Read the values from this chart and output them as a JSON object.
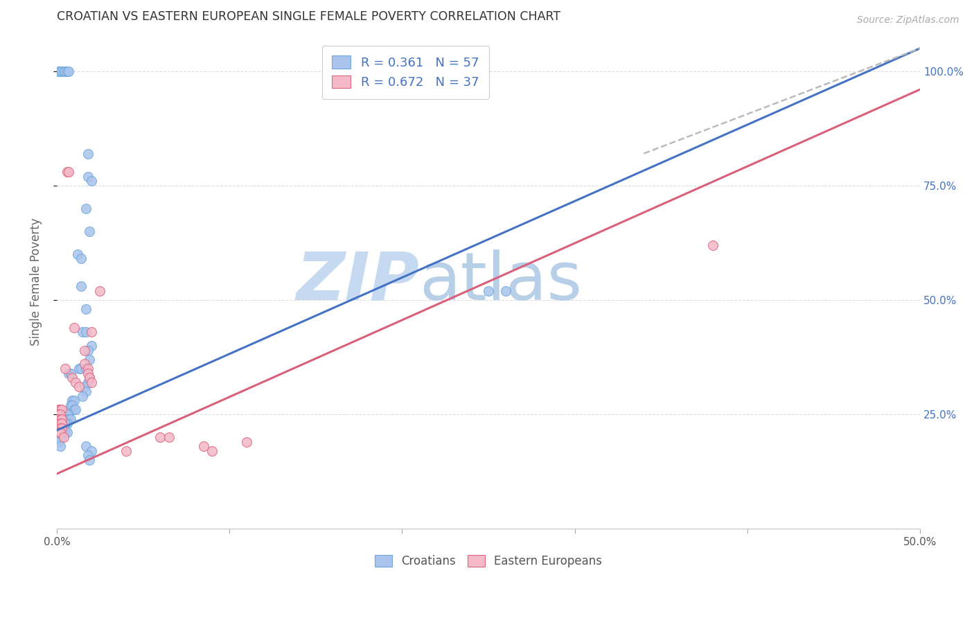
{
  "title": "CROATIAN VS EASTERN EUROPEAN SINGLE FEMALE POVERTY CORRELATION CHART",
  "source": "Source: ZipAtlas.com",
  "ylabel": "Single Female Poverty",
  "right_yticks": [
    "100.0%",
    "75.0%",
    "50.0%",
    "25.0%"
  ],
  "right_ytick_vals": [
    1.0,
    0.75,
    0.5,
    0.25
  ],
  "xlim": [
    0.0,
    0.5
  ],
  "ylim": [
    0.0,
    1.08
  ],
  "croatian_color": "#aac4ed",
  "croatian_edge": "#6fa8dc",
  "eastern_color": "#f4b8c8",
  "eastern_edge": "#d9697e",
  "legend_R_croatian": "R = 0.361",
  "legend_N_croatian": "N = 57",
  "legend_R_eastern": "R = 0.672",
  "legend_N_eastern": "N = 37",
  "croatian_scatter": [
    [
      0.001,
      1.0
    ],
    [
      0.002,
      1.0
    ],
    [
      0.003,
      1.0
    ],
    [
      0.004,
      1.0
    ],
    [
      0.005,
      1.0
    ],
    [
      0.006,
      1.0
    ],
    [
      0.007,
      1.0
    ],
    [
      0.018,
      0.82
    ],
    [
      0.018,
      0.77
    ],
    [
      0.02,
      0.76
    ],
    [
      0.017,
      0.7
    ],
    [
      0.019,
      0.65
    ],
    [
      0.012,
      0.6
    ],
    [
      0.014,
      0.59
    ],
    [
      0.014,
      0.53
    ],
    [
      0.017,
      0.48
    ],
    [
      0.015,
      0.43
    ],
    [
      0.017,
      0.43
    ],
    [
      0.02,
      0.4
    ],
    [
      0.018,
      0.39
    ],
    [
      0.019,
      0.37
    ],
    [
      0.013,
      0.35
    ],
    [
      0.014,
      0.35
    ],
    [
      0.017,
      0.35
    ],
    [
      0.007,
      0.34
    ],
    [
      0.008,
      0.34
    ],
    [
      0.019,
      0.33
    ],
    [
      0.018,
      0.32
    ],
    [
      0.016,
      0.31
    ],
    [
      0.017,
      0.3
    ],
    [
      0.015,
      0.29
    ],
    [
      0.009,
      0.28
    ],
    [
      0.01,
      0.28
    ],
    [
      0.008,
      0.27
    ],
    [
      0.009,
      0.27
    ],
    [
      0.01,
      0.26
    ],
    [
      0.011,
      0.26
    ],
    [
      0.007,
      0.25
    ],
    [
      0.006,
      0.25
    ],
    [
      0.005,
      0.24
    ],
    [
      0.007,
      0.24
    ],
    [
      0.008,
      0.24
    ],
    [
      0.006,
      0.23
    ],
    [
      0.004,
      0.23
    ],
    [
      0.005,
      0.23
    ],
    [
      0.003,
      0.22
    ],
    [
      0.004,
      0.22
    ],
    [
      0.005,
      0.21
    ],
    [
      0.006,
      0.21
    ],
    [
      0.003,
      0.2
    ],
    [
      0.002,
      0.2
    ],
    [
      0.001,
      0.19
    ],
    [
      0.002,
      0.18
    ],
    [
      0.017,
      0.18
    ],
    [
      0.02,
      0.17
    ],
    [
      0.018,
      0.16
    ],
    [
      0.019,
      0.15
    ],
    [
      0.25,
      0.52
    ],
    [
      0.26,
      0.52
    ]
  ],
  "eastern_scatter": [
    [
      0.001,
      0.26
    ],
    [
      0.002,
      0.26
    ],
    [
      0.003,
      0.26
    ],
    [
      0.001,
      0.25
    ],
    [
      0.002,
      0.25
    ],
    [
      0.001,
      0.24
    ],
    [
      0.002,
      0.24
    ],
    [
      0.003,
      0.24
    ],
    [
      0.002,
      0.23
    ],
    [
      0.003,
      0.23
    ],
    [
      0.002,
      0.22
    ],
    [
      0.003,
      0.22
    ],
    [
      0.001,
      0.21
    ],
    [
      0.002,
      0.21
    ],
    [
      0.004,
      0.2
    ],
    [
      0.005,
      0.35
    ],
    [
      0.009,
      0.33
    ],
    [
      0.011,
      0.32
    ],
    [
      0.013,
      0.31
    ],
    [
      0.016,
      0.39
    ],
    [
      0.016,
      0.36
    ],
    [
      0.018,
      0.35
    ],
    [
      0.018,
      0.34
    ],
    [
      0.019,
      0.33
    ],
    [
      0.02,
      0.32
    ],
    [
      0.01,
      0.44
    ],
    [
      0.02,
      0.43
    ],
    [
      0.006,
      0.78
    ],
    [
      0.007,
      0.78
    ],
    [
      0.025,
      0.52
    ],
    [
      0.06,
      0.2
    ],
    [
      0.065,
      0.2
    ],
    [
      0.085,
      0.18
    ],
    [
      0.09,
      0.17
    ],
    [
      0.11,
      0.19
    ],
    [
      0.38,
      0.62
    ],
    [
      0.04,
      0.17
    ]
  ],
  "croatian_line": {
    "x0": 0.0,
    "y0": 0.215,
    "x1": 0.5,
    "y1": 1.05
  },
  "eastern_line": {
    "x0": 0.0,
    "y0": 0.12,
    "x1": 0.5,
    "y1": 0.96
  },
  "dashed_line": {
    "x0": 0.34,
    "y0": 0.82,
    "x1": 0.5,
    "y1": 1.05
  },
  "background_color": "#ffffff",
  "grid_color": "#dddddd",
  "title_color": "#333333",
  "axis_label_color": "#666666",
  "right_axis_color": "#4472c4",
  "watermark_left": "ZIP",
  "watermark_right": "atlas",
  "watermark_color_left": "#c5d9f1",
  "watermark_color_right": "#b8cfe8",
  "watermark_fontsize": 70
}
